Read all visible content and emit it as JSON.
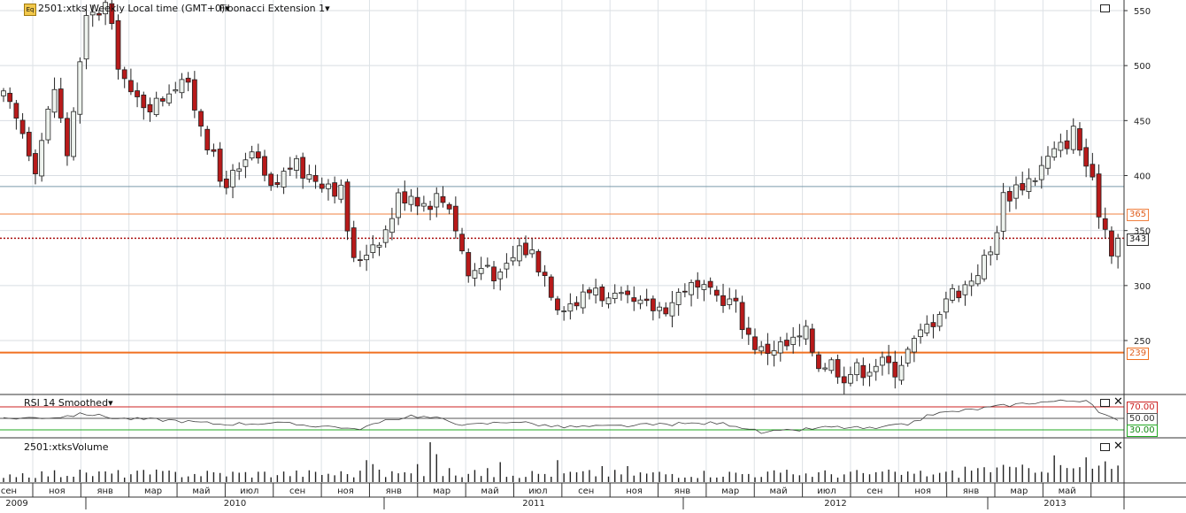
{
  "header": {
    "symbol_label": "2501:xtks Weekly Local time (GMT+0)",
    "study_label": "Fibonacci Extension 1",
    "study_icon": "eq-icon"
  },
  "price_axis": {
    "ticks": [
      "550",
      "500",
      "450",
      "400",
      "350",
      "300",
      "250"
    ]
  },
  "levels": [
    {
      "value": 390,
      "color": "#7a9aaa",
      "label": ""
    },
    {
      "value": 365,
      "color": "#f08040",
      "label": "365"
    },
    {
      "value": 343,
      "color": "#aa1111",
      "label": "343",
      "dotted": true
    },
    {
      "value": 239,
      "color": "#f07020",
      "label": "239"
    }
  ],
  "rsi": {
    "label": "RSI 14 Smoothed",
    "levels": [
      {
        "value": 70,
        "label": "70.00",
        "color": "#cc2222"
      },
      {
        "value": 50,
        "label": "50.00",
        "color": "#555555"
      },
      {
        "value": 30,
        "label": "30.00",
        "color": "#22aa22"
      }
    ]
  },
  "volume": {
    "label": "2501:xtksVolume"
  },
  "time_axis": {
    "months": [
      "сен",
      "ноя",
      "янв",
      "мар",
      "май",
      "июл",
      "сен",
      "ноя",
      "янв",
      "мар",
      "май",
      "июл",
      "сен",
      "ноя",
      "янв",
      "мар",
      "май",
      "июл",
      "сен",
      "ноя",
      "янв",
      "мар",
      "май"
    ],
    "years": [
      "2009",
      "2010",
      "2011",
      "2012",
      "2013"
    ]
  },
  "chart_data": {
    "type": "candlestick",
    "title": "",
    "ylim": [
      205,
      560
    ],
    "grid": true,
    "anchors": [
      [
        0,
        470
      ],
      [
        3,
        440
      ],
      [
        5,
        410
      ],
      [
        8,
        480
      ],
      [
        10,
        420
      ],
      [
        13,
        540
      ],
      [
        16,
        555
      ],
      [
        18,
        505
      ],
      [
        20,
        470
      ],
      [
        24,
        465
      ],
      [
        26,
        480
      ],
      [
        28,
        490
      ],
      [
        31,
        450
      ],
      [
        34,
        395
      ],
      [
        37,
        400
      ],
      [
        39,
        420
      ],
      [
        42,
        385
      ],
      [
        45,
        410
      ],
      [
        48,
        400
      ],
      [
        51,
        395
      ],
      [
        53,
        385
      ],
      [
        55,
        320
      ],
      [
        58,
        340
      ],
      [
        60,
        350
      ],
      [
        62,
        380
      ],
      [
        64,
        385
      ],
      [
        66,
        375
      ],
      [
        68,
        380
      ],
      [
        70,
        375
      ],
      [
        73,
        310
      ],
      [
        76,
        320
      ],
      [
        78,
        305
      ],
      [
        81,
        335
      ],
      [
        83,
        330
      ],
      [
        85,
        310
      ],
      [
        87,
        285
      ],
      [
        90,
        285
      ],
      [
        93,
        300
      ],
      [
        95,
        285
      ],
      [
        97,
        285
      ],
      [
        100,
        280
      ],
      [
        103,
        280
      ],
      [
        105,
        285
      ],
      [
        107,
        300
      ],
      [
        109,
        295
      ],
      [
        111,
        290
      ],
      [
        113,
        290
      ],
      [
        115,
        280
      ],
      [
        117,
        255
      ],
      [
        119,
        240
      ],
      [
        121,
        245
      ],
      [
        123,
        245
      ],
      [
        126,
        255
      ],
      [
        128,
        230
      ],
      [
        130,
        230
      ],
      [
        132,
        220
      ],
      [
        135,
        225
      ],
      [
        137,
        230
      ],
      [
        140,
        225
      ],
      [
        142,
        240
      ],
      [
        144,
        255
      ],
      [
        146,
        270
      ],
      [
        148,
        290
      ],
      [
        151,
        300
      ],
      [
        153,
        315
      ],
      [
        155,
        330
      ],
      [
        157,
        380
      ],
      [
        159,
        390
      ],
      [
        162,
        400
      ],
      [
        164,
        415
      ],
      [
        166,
        425
      ],
      [
        168,
        440
      ],
      [
        170,
        410
      ],
      [
        172,
        370
      ],
      [
        174,
        335
      ],
      [
        175,
        343
      ]
    ],
    "rsi_anchors": [
      [
        0,
        50
      ],
      [
        8,
        52
      ],
      [
        13,
        58
      ],
      [
        18,
        50
      ],
      [
        26,
        47
      ],
      [
        34,
        40
      ],
      [
        42,
        42
      ],
      [
        48,
        38
      ],
      [
        53,
        35
      ],
      [
        55,
        30
      ],
      [
        60,
        45
      ],
      [
        64,
        55
      ],
      [
        68,
        50
      ],
      [
        73,
        38
      ],
      [
        80,
        45
      ],
      [
        87,
        35
      ],
      [
        95,
        36
      ],
      [
        105,
        40
      ],
      [
        112,
        42
      ],
      [
        115,
        38
      ],
      [
        119,
        25
      ],
      [
        123,
        28
      ],
      [
        130,
        35
      ],
      [
        137,
        32
      ],
      [
        142,
        40
      ],
      [
        146,
        58
      ],
      [
        152,
        65
      ],
      [
        157,
        72
      ],
      [
        162,
        78
      ],
      [
        166,
        80
      ],
      [
        170,
        82
      ],
      [
        172,
        60
      ],
      [
        175,
        45
      ]
    ]
  }
}
